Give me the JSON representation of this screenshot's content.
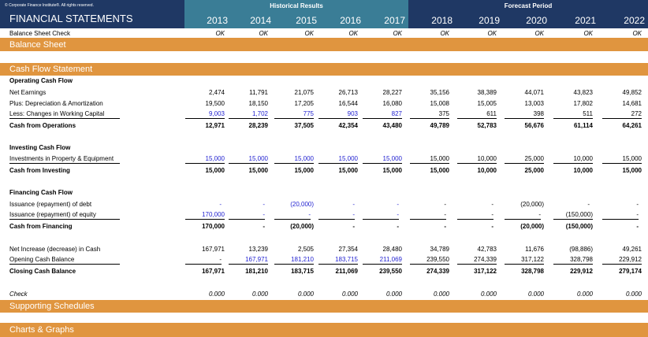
{
  "copyright": "© Corporate Finance Institute®. All rights reserved.",
  "title": "FINANCIAL STATEMENTS",
  "historical_label": "Historical Results",
  "forecast_label": "Forecast Period",
  "years": [
    "2013",
    "2014",
    "2015",
    "2016",
    "2017",
    "2018",
    "2019",
    "2020",
    "2021",
    "2022"
  ],
  "balance_check": {
    "label": "Balance Sheet Check",
    "values": [
      "OK",
      "OK",
      "OK",
      "OK",
      "OK",
      "OK",
      "OK",
      "OK",
      "OK",
      "OK"
    ]
  },
  "sections": {
    "balance_sheet": "Balance Sheet",
    "cash_flow": "Cash Flow Statement",
    "supporting": "Supporting Schedules",
    "charts": "Charts & Graphs"
  },
  "operating": {
    "header": "Operating Cash Flow",
    "rows": [
      {
        "label": "Net Earnings",
        "values": [
          "2,474",
          "11,791",
          "21,075",
          "26,713",
          "28,227",
          "35,156",
          "38,389",
          "44,071",
          "43,823",
          "49,852"
        ]
      },
      {
        "label": "Plus: Depreciation & Amortization",
        "values": [
          "19,500",
          "18,150",
          "17,205",
          "16,544",
          "16,080",
          "15,008",
          "15,005",
          "13,003",
          "17,802",
          "14,681"
        ]
      },
      {
        "label": "Less: Changes in Working Capital",
        "values": [
          "9,003",
          "1,702",
          "775",
          "903",
          "827",
          "375",
          "611",
          "398",
          "511",
          "272"
        ]
      },
      {
        "label": "Cash from Operations",
        "values": [
          "12,971",
          "28,239",
          "37,505",
          "42,354",
          "43,480",
          "49,789",
          "52,783",
          "56,676",
          "61,114",
          "64,261"
        ]
      }
    ]
  },
  "investing": {
    "header": "Investing Cash Flow",
    "rows": [
      {
        "label": "Investments in Property & Equipment",
        "values": [
          "15,000",
          "15,000",
          "15,000",
          "15,000",
          "15,000",
          "15,000",
          "10,000",
          "25,000",
          "10,000",
          "15,000"
        ]
      },
      {
        "label": "Cash from Investing",
        "values": [
          "15,000",
          "15,000",
          "15,000",
          "15,000",
          "15,000",
          "15,000",
          "10,000",
          "25,000",
          "10,000",
          "15,000"
        ]
      }
    ]
  },
  "financing": {
    "header": "Financing Cash Flow",
    "rows": [
      {
        "label": "Issuance (repayment) of debt",
        "values": [
          "-",
          "-",
          "(20,000)",
          "-",
          "-",
          "-",
          "-",
          "(20,000)",
          "-",
          "-"
        ]
      },
      {
        "label": "Issuance (repayment) of equity",
        "values": [
          "170,000",
          "-",
          "-",
          "-",
          "-",
          "-",
          "-",
          "-",
          "(150,000)",
          "-"
        ]
      },
      {
        "label": "Cash from Financing",
        "values": [
          "170,000",
          "-",
          "(20,000)",
          "-",
          "-",
          "-",
          "-",
          "(20,000)",
          "(150,000)",
          "-"
        ]
      }
    ]
  },
  "summary": {
    "rows": [
      {
        "label": "Net Increase (decrease) in Cash",
        "values": [
          "167,971",
          "13,239",
          "2,505",
          "27,354",
          "28,480",
          "34,789",
          "42,783",
          "11,676",
          "(98,886)",
          "49,261"
        ]
      },
      {
        "label": "Opening Cash Balance",
        "values": [
          "-",
          "167,971",
          "181,210",
          "183,715",
          "211,069",
          "239,550",
          "274,339",
          "317,122",
          "328,798",
          "229,912"
        ]
      },
      {
        "label": "Closing Cash Balance",
        "values": [
          "167,971",
          "181,210",
          "183,715",
          "211,069",
          "239,550",
          "274,339",
          "317,122",
          "328,798",
          "229,912",
          "279,174"
        ]
      }
    ]
  },
  "check": {
    "label": "Check",
    "values": [
      "0.000",
      "0.000",
      "0.000",
      "0.000",
      "0.000",
      "0.000",
      "0.000",
      "0.000",
      "0.000",
      "0.000"
    ]
  },
  "colors": {
    "historical_bg": "#3a7d96",
    "forecast_bg": "#1f3864",
    "orange": "#e0953f",
    "input_blue": "#1f1fd0"
  }
}
